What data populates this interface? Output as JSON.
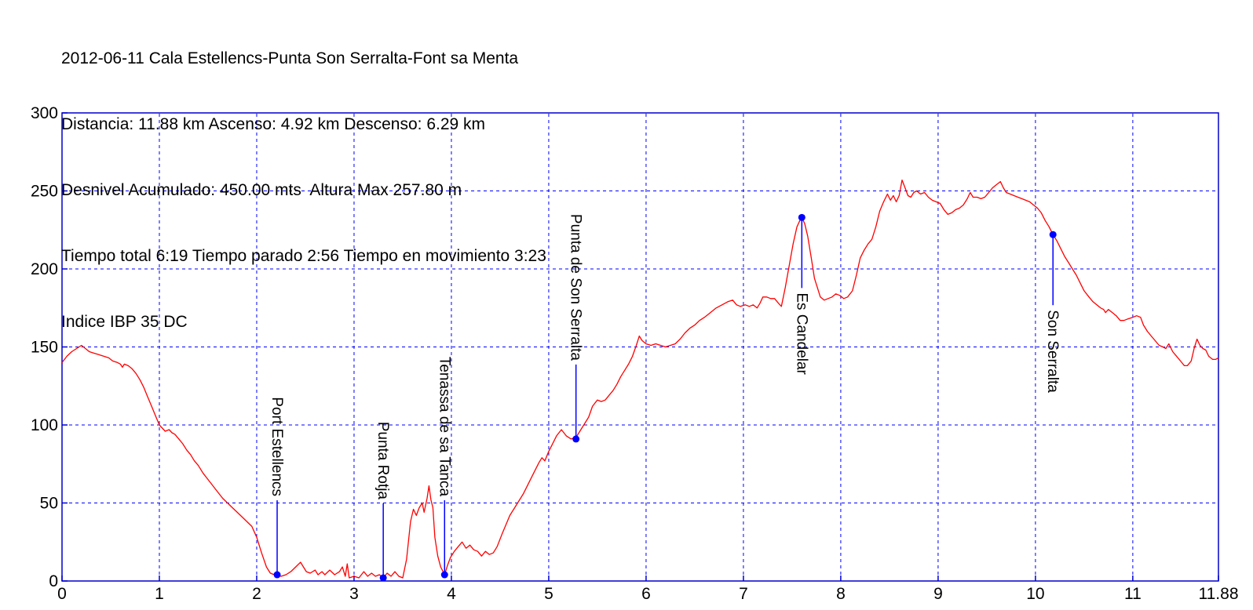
{
  "header": {
    "lines": [
      "2012-06-11 Cala Estellencs-Punta Son Serralta-Font sa Menta",
      "Distancia: 11.88 km Ascenso: 4.92 km Descenso: 6.29 km",
      "Desnivel Acumulado: 450.00 mts  Altura Max 257.80 m",
      "Tiempo total 6:19 Tiempo parado 2:56 Tiempo en movimiento 3:23",
      "Indice IBP 35 DC"
    ]
  },
  "chart_data": {
    "type": "line",
    "title": "2012-06-11 Cala Estellencs-Punta Son Serralta-Font sa Menta",
    "subtitle_stats": {
      "distancia_km": 11.88,
      "ascenso_km": 4.92,
      "descenso_km": 6.29,
      "desnivel_acumulado_mts": 450.0,
      "altura_max_m": 257.8,
      "tiempo_total": "6:19",
      "tiempo_parado": "2:56",
      "tiempo_en_movimiento": "3:23",
      "indice_ibp": "35 DC"
    },
    "xlabel": "",
    "ylabel": "",
    "xlim": [
      0,
      11.88
    ],
    "ylim": [
      0,
      300
    ],
    "x_ticks": [
      0,
      1,
      2,
      3,
      4,
      5,
      6,
      7,
      8,
      9,
      10,
      11,
      11.88
    ],
    "y_ticks": [
      0,
      50,
      100,
      150,
      200,
      250,
      300
    ],
    "grid": true,
    "legend": "none",
    "colors": {
      "line": "#ff0000",
      "axis": "#0000cc",
      "grid": "#0000ff",
      "marker": "#0000ff",
      "text": "#000000",
      "background": "#ffffff"
    },
    "series": [
      {
        "name": "elevation-profile-m-vs-km",
        "points": [
          [
            0,
            140
          ],
          [
            0.05,
            144
          ],
          [
            0.1,
            147
          ],
          [
            0.15,
            149
          ],
          [
            0.2,
            151
          ],
          [
            0.24,
            149
          ],
          [
            0.28,
            147
          ],
          [
            0.33,
            146
          ],
          [
            0.38,
            145
          ],
          [
            0.43,
            144
          ],
          [
            0.48,
            143
          ],
          [
            0.52,
            141
          ],
          [
            0.57,
            140
          ],
          [
            0.6,
            139
          ],
          [
            0.62,
            137
          ],
          [
            0.64,
            139
          ],
          [
            0.68,
            138
          ],
          [
            0.72,
            136
          ],
          [
            0.76,
            133
          ],
          [
            0.8,
            129
          ],
          [
            0.84,
            124
          ],
          [
            0.88,
            118
          ],
          [
            0.92,
            112
          ],
          [
            0.96,
            106
          ],
          [
            1,
            100
          ],
          [
            1.03,
            98
          ],
          [
            1.06,
            96
          ],
          [
            1.1,
            97
          ],
          [
            1.13,
            95
          ],
          [
            1.16,
            94
          ],
          [
            1.2,
            91
          ],
          [
            1.24,
            88
          ],
          [
            1.28,
            84
          ],
          [
            1.32,
            81
          ],
          [
            1.36,
            77
          ],
          [
            1.4,
            74
          ],
          [
            1.45,
            69
          ],
          [
            1.5,
            65
          ],
          [
            1.55,
            61
          ],
          [
            1.6,
            57
          ],
          [
            1.65,
            53
          ],
          [
            1.7,
            50
          ],
          [
            1.75,
            47
          ],
          [
            1.8,
            44
          ],
          [
            1.85,
            41
          ],
          [
            1.9,
            38
          ],
          [
            1.95,
            35
          ],
          [
            2,
            28
          ],
          [
            2.05,
            18
          ],
          [
            2.1,
            9
          ],
          [
            2.14,
            5
          ],
          [
            2.18,
            4
          ],
          [
            2.21,
            4
          ],
          [
            2.25,
            3
          ],
          [
            2.3,
            4
          ],
          [
            2.35,
            6
          ],
          [
            2.4,
            9
          ],
          [
            2.45,
            12
          ],
          [
            2.48,
            9
          ],
          [
            2.51,
            6
          ],
          [
            2.55,
            5
          ],
          [
            2.6,
            7
          ],
          [
            2.63,
            4
          ],
          [
            2.67,
            6
          ],
          [
            2.7,
            4
          ],
          [
            2.75,
            7
          ],
          [
            2.8,
            4
          ],
          [
            2.85,
            6
          ],
          [
            2.88,
            9
          ],
          [
            2.91,
            3
          ],
          [
            2.93,
            11
          ],
          [
            2.95,
            2
          ],
          [
            3,
            3
          ],
          [
            3.05,
            2
          ],
          [
            3.1,
            6
          ],
          [
            3.14,
            3
          ],
          [
            3.18,
            5
          ],
          [
            3.22,
            3
          ],
          [
            3.26,
            4
          ],
          [
            3.3,
            2
          ],
          [
            3.34,
            5
          ],
          [
            3.38,
            3
          ],
          [
            3.42,
            6
          ],
          [
            3.46,
            3
          ],
          [
            3.5,
            2
          ],
          [
            3.54,
            14
          ],
          [
            3.58,
            38
          ],
          [
            3.61,
            46
          ],
          [
            3.64,
            42
          ],
          [
            3.67,
            47
          ],
          [
            3.7,
            50
          ],
          [
            3.72,
            44
          ],
          [
            3.75,
            53
          ],
          [
            3.77,
            61
          ],
          [
            3.79,
            52
          ],
          [
            3.81,
            47
          ],
          [
            3.83,
            28
          ],
          [
            3.86,
            16
          ],
          [
            3.89,
            9
          ],
          [
            3.93,
            4
          ],
          [
            3.96,
            10
          ],
          [
            3.99,
            15
          ],
          [
            4.03,
            19
          ],
          [
            4.07,
            22
          ],
          [
            4.11,
            25
          ],
          [
            4.15,
            21
          ],
          [
            4.19,
            23
          ],
          [
            4.23,
            20
          ],
          [
            4.27,
            19
          ],
          [
            4.31,
            16
          ],
          [
            4.35,
            19
          ],
          [
            4.39,
            17
          ],
          [
            4.43,
            18
          ],
          [
            4.47,
            22
          ],
          [
            4.52,
            30
          ],
          [
            4.56,
            36
          ],
          [
            4.6,
            42
          ],
          [
            4.65,
            47
          ],
          [
            4.7,
            52
          ],
          [
            4.74,
            56
          ],
          [
            4.78,
            61
          ],
          [
            4.82,
            66
          ],
          [
            4.86,
            71
          ],
          [
            4.9,
            76
          ],
          [
            4.93,
            79
          ],
          [
            4.96,
            77
          ],
          [
            5,
            83
          ],
          [
            5.04,
            88
          ],
          [
            5.08,
            93
          ],
          [
            5.13,
            97
          ],
          [
            5.18,
            93
          ],
          [
            5.23,
            91
          ],
          [
            5.28,
            92
          ],
          [
            5.32,
            96
          ],
          [
            5.36,
            100
          ],
          [
            5.41,
            105
          ],
          [
            5.45,
            112
          ],
          [
            5.5,
            116
          ],
          [
            5.54,
            115
          ],
          [
            5.58,
            116
          ],
          [
            5.62,
            119
          ],
          [
            5.66,
            122
          ],
          [
            5.7,
            126
          ],
          [
            5.74,
            131
          ],
          [
            5.78,
            135
          ],
          [
            5.82,
            139
          ],
          [
            5.86,
            144
          ],
          [
            5.9,
            151
          ],
          [
            5.93,
            157
          ],
          [
            5.96,
            154
          ],
          [
            6,
            152
          ],
          [
            6.05,
            151
          ],
          [
            6.1,
            152
          ],
          [
            6.15,
            151
          ],
          [
            6.2,
            150
          ],
          [
            6.25,
            151
          ],
          [
            6.3,
            152
          ],
          [
            6.35,
            155
          ],
          [
            6.4,
            159
          ],
          [
            6.45,
            162
          ],
          [
            6.5,
            164
          ],
          [
            6.55,
            167
          ],
          [
            6.6,
            169
          ],
          [
            6.66,
            172
          ],
          [
            6.72,
            175
          ],
          [
            6.78,
            177
          ],
          [
            6.84,
            179
          ],
          [
            6.89,
            180
          ],
          [
            6.93,
            177
          ],
          [
            6.97,
            176
          ],
          [
            7.02,
            177
          ],
          [
            7.06,
            176
          ],
          [
            7.1,
            177
          ],
          [
            7.14,
            175
          ],
          [
            7.17,
            178
          ],
          [
            7.2,
            182
          ],
          [
            7.24,
            182
          ],
          [
            7.28,
            181
          ],
          [
            7.32,
            181
          ],
          [
            7.36,
            178
          ],
          [
            7.39,
            176
          ],
          [
            7.43,
            188
          ],
          [
            7.47,
            202
          ],
          [
            7.51,
            216
          ],
          [
            7.55,
            227
          ],
          [
            7.58,
            231
          ],
          [
            7.6,
            233
          ],
          [
            7.63,
            229
          ],
          [
            7.66,
            221
          ],
          [
            7.7,
            206
          ],
          [
            7.73,
            194
          ],
          [
            7.76,
            188
          ],
          [
            7.79,
            182
          ],
          [
            7.83,
            180
          ],
          [
            7.87,
            181
          ],
          [
            7.91,
            182
          ],
          [
            7.95,
            184
          ],
          [
            7.99,
            183
          ],
          [
            8.03,
            181
          ],
          [
            8.07,
            182
          ],
          [
            8.12,
            186
          ],
          [
            8.16,
            196
          ],
          [
            8.2,
            207
          ],
          [
            8.24,
            212
          ],
          [
            8.28,
            216
          ],
          [
            8.32,
            219
          ],
          [
            8.36,
            227
          ],
          [
            8.4,
            237
          ],
          [
            8.44,
            243
          ],
          [
            8.48,
            248
          ],
          [
            8.51,
            244
          ],
          [
            8.54,
            247
          ],
          [
            8.57,
            243
          ],
          [
            8.6,
            247
          ],
          [
            8.63,
            257
          ],
          [
            8.66,
            252
          ],
          [
            8.69,
            247
          ],
          [
            8.72,
            246
          ],
          [
            8.75,
            249
          ],
          [
            8.78,
            250
          ],
          [
            8.82,
            248
          ],
          [
            8.86,
            249
          ],
          [
            8.9,
            246
          ],
          [
            8.94,
            244
          ],
          [
            8.98,
            243
          ],
          [
            9.02,
            242
          ],
          [
            9.06,
            238
          ],
          [
            9.1,
            235
          ],
          [
            9.14,
            236
          ],
          [
            9.18,
            238
          ],
          [
            9.22,
            239
          ],
          [
            9.26,
            241
          ],
          [
            9.3,
            245
          ],
          [
            9.33,
            249
          ],
          [
            9.36,
            246
          ],
          [
            9.4,
            246
          ],
          [
            9.44,
            245
          ],
          [
            9.48,
            246
          ],
          [
            9.52,
            249
          ],
          [
            9.56,
            252
          ],
          [
            9.6,
            254
          ],
          [
            9.64,
            256
          ],
          [
            9.67,
            252
          ],
          [
            9.7,
            249
          ],
          [
            9.74,
            248
          ],
          [
            9.78,
            247
          ],
          [
            9.82,
            246
          ],
          [
            9.86,
            245
          ],
          [
            9.9,
            244
          ],
          [
            9.94,
            243
          ],
          [
            9.98,
            241
          ],
          [
            10.02,
            239
          ],
          [
            10.06,
            236
          ],
          [
            10.1,
            231
          ],
          [
            10.14,
            227
          ],
          [
            10.18,
            222
          ],
          [
            10.22,
            218
          ],
          [
            10.26,
            213
          ],
          [
            10.3,
            208
          ],
          [
            10.34,
            204
          ],
          [
            10.38,
            200
          ],
          [
            10.42,
            196
          ],
          [
            10.46,
            191
          ],
          [
            10.5,
            186
          ],
          [
            10.55,
            182
          ],
          [
            10.59,
            179
          ],
          [
            10.63,
            177
          ],
          [
            10.67,
            175
          ],
          [
            10.7,
            174
          ],
          [
            10.72,
            172
          ],
          [
            10.75,
            174
          ],
          [
            10.79,
            172
          ],
          [
            10.83,
            170
          ],
          [
            10.87,
            167
          ],
          [
            10.91,
            167
          ],
          [
            10.95,
            168
          ],
          [
            11,
            169
          ],
          [
            11.04,
            170
          ],
          [
            11.08,
            169
          ],
          [
            11.11,
            164
          ],
          [
            11.15,
            160
          ],
          [
            11.19,
            157
          ],
          [
            11.23,
            154
          ],
          [
            11.27,
            151
          ],
          [
            11.31,
            150
          ],
          [
            11.34,
            149
          ],
          [
            11.37,
            152
          ],
          [
            11.41,
            147
          ],
          [
            11.45,
            144
          ],
          [
            11.49,
            141
          ],
          [
            11.53,
            138
          ],
          [
            11.56,
            138
          ],
          [
            11.6,
            141
          ],
          [
            11.63,
            149
          ],
          [
            11.66,
            155
          ],
          [
            11.69,
            151
          ],
          [
            11.72,
            149
          ],
          [
            11.75,
            148
          ],
          [
            11.78,
            144
          ],
          [
            11.82,
            142
          ],
          [
            11.85,
            142
          ],
          [
            11.88,
            143
          ]
        ]
      }
    ],
    "waypoints": [
      {
        "label": "Port Estellencs",
        "km": 2.21,
        "elev": 4,
        "label_side": "up"
      },
      {
        "label": "Punta Rotja",
        "km": 3.3,
        "elev": 2,
        "label_side": "up"
      },
      {
        "label": "Tenassa de sa Tanca",
        "km": 3.93,
        "elev": 4,
        "label_side": "up"
      },
      {
        "label": "Punta de Son Serralta",
        "km": 5.28,
        "elev": 91,
        "label_side": "up"
      },
      {
        "label": "Es Candelar",
        "km": 7.6,
        "elev": 233,
        "label_side": "down"
      },
      {
        "label": "Son Serralta",
        "km": 10.18,
        "elev": 222,
        "label_side": "down"
      }
    ]
  }
}
